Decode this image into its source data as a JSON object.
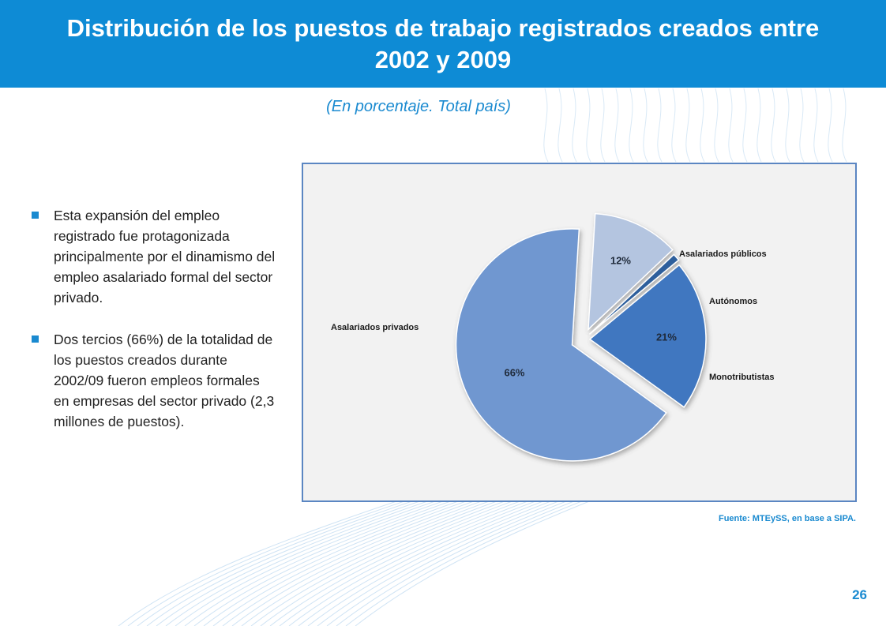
{
  "slide": {
    "title": "Distribución de los puestos de trabajo registrados creados entre 2002 y 2009",
    "subtitle": "(En porcentaje. Total país)",
    "bullets": [
      "Esta expansión del empleo registrado fue protagonizada principalmente por el dinamismo del  empleo asalariado formal del sector privado.",
      "Dos tercios (66%) de la totalidad de los puestos creados durante 2002/09 fueron empleos formales en empresas del sector privado (2,3 millones de puestos)."
    ],
    "source": "Fuente: MTEySS, en base a SIPA.",
    "page_number": "26",
    "accent_color": "#0e8bd5"
  },
  "chart_data": {
    "type": "pie",
    "title": "",
    "unit": "%",
    "slices": [
      {
        "label": "Asalariados públicos",
        "value": 12,
        "display": "12%",
        "color": "#b4c5e0"
      },
      {
        "label": "Autónomos",
        "value": 1,
        "display": "",
        "color": "#2f5f9c"
      },
      {
        "label": "Monotributistas",
        "value": 21,
        "display": "21%",
        "color": "#3f77c0"
      },
      {
        "label": "Asalariados privados",
        "value": 66,
        "display": "66%",
        "color": "#6f97d0"
      }
    ],
    "exploded": true,
    "legend": "none (category labels beside slices)"
  }
}
